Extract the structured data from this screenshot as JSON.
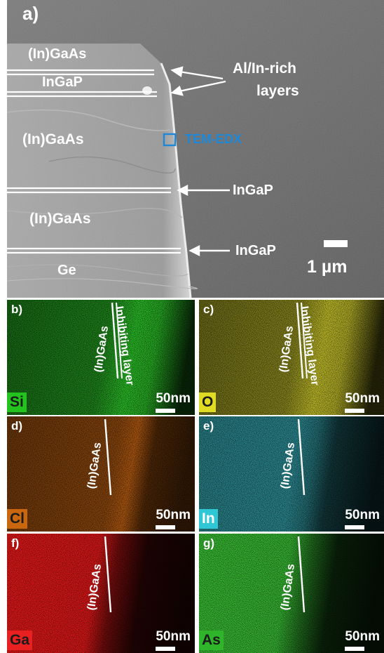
{
  "panel_a": {
    "letter": "a)",
    "layer_labels": [
      "(In)GaAs",
      "InGaP",
      "(In)GaAs",
      "(In)GaAs",
      "Ge"
    ],
    "annotation_alin": [
      "Al/In-rich",
      "layers"
    ],
    "annotation_ingap_1": "InGaP",
    "annotation_ingap_2": "InGaP",
    "tem_label": "TEM-EDX",
    "tem_color": "#1e88d8",
    "scale_label": "1 µm"
  },
  "maps": [
    {
      "letter": "b)",
      "element": "Si",
      "color": "#2fd12b",
      "tag_bg": "#23c21f",
      "tag_fg": "#1b1b1b",
      "texts": [
        "(In)GaAs",
        "Inhibiting layer"
      ],
      "scale": "50nm"
    },
    {
      "letter": "c)",
      "element": "O",
      "color": "#d6d22e",
      "tag_bg": "#e0dc25",
      "tag_fg": "#1b1b1b",
      "texts": [
        "(In)GaAs",
        "Inhibiting layer"
      ],
      "scale": "50nm"
    },
    {
      "letter": "d)",
      "element": "Cl",
      "color": "#d86d14",
      "tag_bg": "#c9670f",
      "tag_fg": "#1b1b1b",
      "texts": [
        "(In)GaAs"
      ],
      "scale": "50nm"
    },
    {
      "letter": "e)",
      "element": "In",
      "color": "#3fc8d4",
      "tag_bg": "#2fc6d5",
      "tag_fg": "#ffffff",
      "texts": [
        "(In)GaAs"
      ],
      "scale": "50nm"
    },
    {
      "letter": "f)",
      "element": "Ga",
      "color": "#ff1b1b",
      "tag_bg": "#e82020",
      "tag_fg": "#1b1b1b",
      "texts": [
        "(In)GaAs"
      ],
      "scale": "50nm"
    },
    {
      "letter": "g)",
      "element": "As",
      "color": "#3fd43a",
      "tag_bg": "#2fb52a",
      "tag_fg": "#1b1b1b",
      "texts": [
        "(In)GaAs"
      ],
      "scale": "50nm"
    }
  ]
}
